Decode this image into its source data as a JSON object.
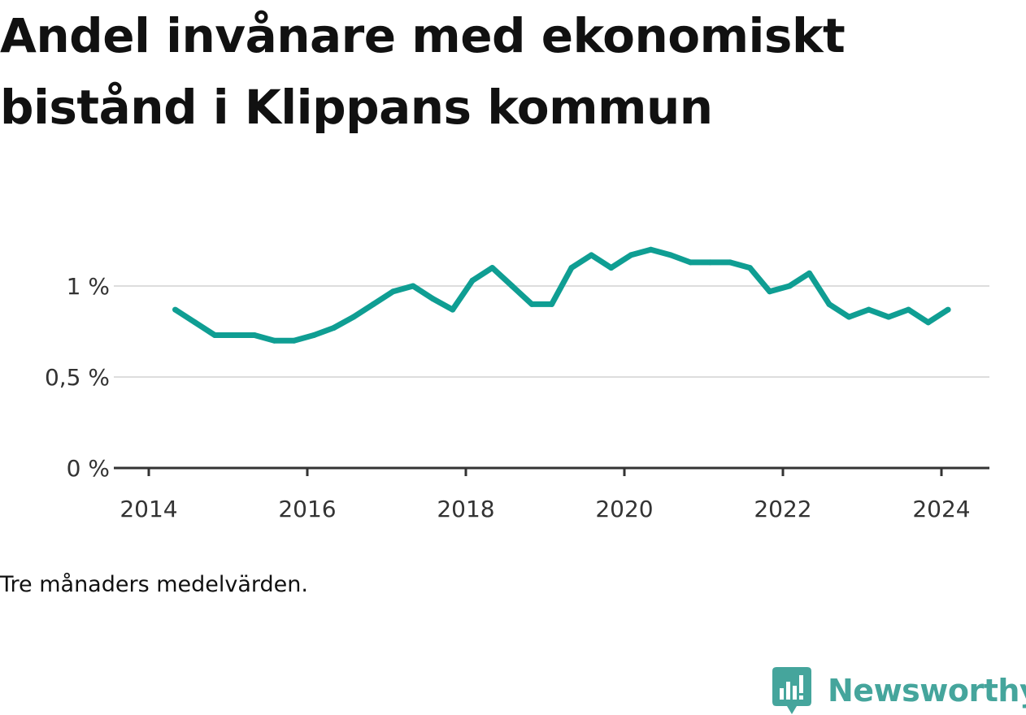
{
  "chart_data": {
    "type": "line",
    "title": "Andel invånare med ekonomiskt bistånd i Klippans kommun",
    "note": "Tre månaders medelvärden.",
    "x_ticks": [
      "2014",
      "2016",
      "2018",
      "2020",
      "2022",
      "2024"
    ],
    "y_ticks": [
      {
        "value": 0,
        "label": "0 %"
      },
      {
        "value": 0.5,
        "label": "0,5 %"
      },
      {
        "value": 1,
        "label": "1 %"
      }
    ],
    "xlim": [
      2013.9,
      2024.6
    ],
    "ylim": [
      0,
      1.2
    ],
    "series": [
      {
        "color": "#0f9e93",
        "points": [
          {
            "x": "2014-05",
            "y": 0.87
          },
          {
            "x": "2014-08",
            "y": 0.8
          },
          {
            "x": "2014-11",
            "y": 0.73
          },
          {
            "x": "2015-02",
            "y": 0.73
          },
          {
            "x": "2015-05",
            "y": 0.73
          },
          {
            "x": "2015-08",
            "y": 0.7
          },
          {
            "x": "2015-11",
            "y": 0.7
          },
          {
            "x": "2016-02",
            "y": 0.73
          },
          {
            "x": "2016-05",
            "y": 0.77
          },
          {
            "x": "2016-08",
            "y": 0.83
          },
          {
            "x": "2016-11",
            "y": 0.9
          },
          {
            "x": "2017-02",
            "y": 0.97
          },
          {
            "x": "2017-05",
            "y": 1.0
          },
          {
            "x": "2017-08",
            "y": 0.93
          },
          {
            "x": "2017-11",
            "y": 0.87
          },
          {
            "x": "2018-02",
            "y": 1.03
          },
          {
            "x": "2018-05",
            "y": 1.1
          },
          {
            "x": "2018-08",
            "y": 1.0
          },
          {
            "x": "2018-11",
            "y": 0.9
          },
          {
            "x": "2019-02",
            "y": 0.9
          },
          {
            "x": "2019-05",
            "y": 1.1
          },
          {
            "x": "2019-08",
            "y": 1.17
          },
          {
            "x": "2019-11",
            "y": 1.1
          },
          {
            "x": "2020-02",
            "y": 1.17
          },
          {
            "x": "2020-05",
            "y": 1.2
          },
          {
            "x": "2020-08",
            "y": 1.17
          },
          {
            "x": "2020-11",
            "y": 1.13
          },
          {
            "x": "2021-02",
            "y": 1.13
          },
          {
            "x": "2021-05",
            "y": 1.13
          },
          {
            "x": "2021-08",
            "y": 1.1
          },
          {
            "x": "2021-11",
            "y": 0.97
          },
          {
            "x": "2022-02",
            "y": 1.0
          },
          {
            "x": "2022-05",
            "y": 1.07
          },
          {
            "x": "2022-08",
            "y": 0.9
          },
          {
            "x": "2022-11",
            "y": 0.83
          },
          {
            "x": "2023-02",
            "y": 0.87
          },
          {
            "x": "2023-05",
            "y": 0.83
          },
          {
            "x": "2023-08",
            "y": 0.87
          },
          {
            "x": "2023-11",
            "y": 0.8
          },
          {
            "x": "2024-02",
            "y": 0.87
          }
        ]
      }
    ],
    "grid": true,
    "gridline_color": "#dddddd",
    "axis_color": "#333333"
  },
  "brand": {
    "name": "Newsworthy",
    "icon": "newsworthy-logo-icon",
    "color": "#45a59c"
  }
}
